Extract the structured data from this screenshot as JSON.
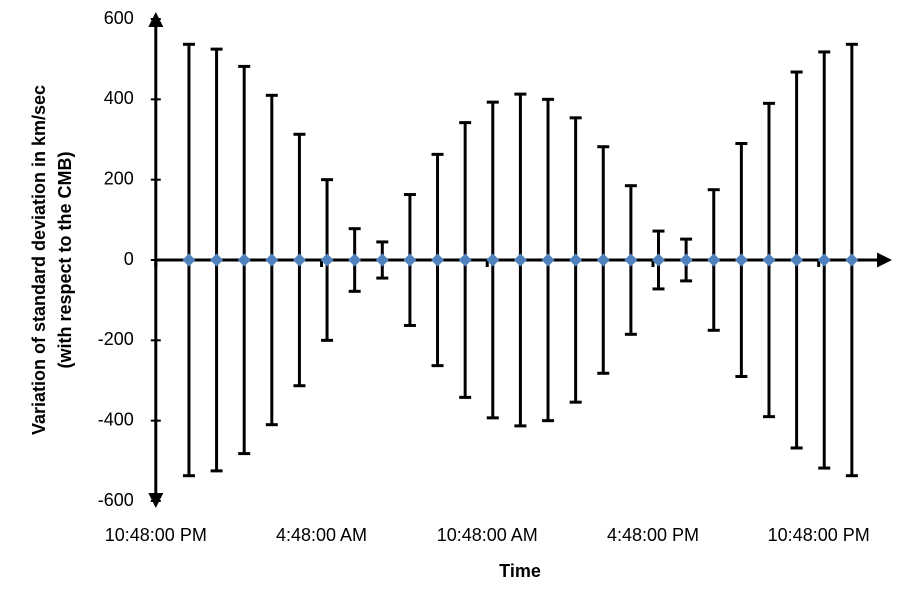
{
  "chart_data": {
    "type": "errorbar",
    "x_label": "Time",
    "y_label": [
      "Variation of standard deviation in km/sec",
      "(with respect to the CMB)"
    ],
    "x": [
      0,
      1,
      2,
      3,
      4,
      5,
      6,
      7,
      8,
      9,
      10,
      11,
      12,
      13,
      14,
      15,
      16,
      17,
      18,
      19,
      20,
      21,
      22,
      23,
      24
    ],
    "values": [
      0,
      0,
      0,
      0,
      0,
      0,
      0,
      0,
      0,
      0,
      0,
      0,
      0,
      0,
      0,
      0,
      0,
      0,
      0,
      0,
      0,
      0,
      0,
      0,
      0
    ],
    "errors": [
      537,
      525,
      482,
      410,
      313,
      200,
      78,
      45,
      163,
      263,
      342,
      393,
      413,
      400,
      354,
      282,
      185,
      72,
      52,
      175,
      290,
      390,
      468,
      518,
      537
    ],
    "color": "#4f81bd",
    "xlim": [
      -1.2,
      25.2
    ],
    "xticks": [
      {
        "value": -1.2,
        "label": "10:48:00 PM"
      },
      {
        "value": 4.8,
        "label": "4:48:00 AM"
      },
      {
        "value": 10.8,
        "label": "10:48:00 AM"
      },
      {
        "value": 16.8,
        "label": "4:48:00 PM"
      },
      {
        "value": 22.8,
        "label": "10:48:00 PM"
      }
    ],
    "ylim": [
      -600,
      600
    ],
    "yticks": [
      -600,
      -400,
      -200,
      0,
      200,
      400,
      600
    ]
  }
}
